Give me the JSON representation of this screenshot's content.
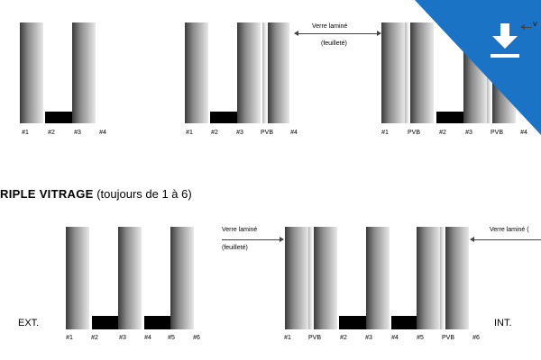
{
  "top_row": {
    "diagram_a": {
      "labels": [
        "#1",
        "#2",
        "#3",
        "#4"
      ]
    },
    "diagram_b": {
      "labels": [
        "#1",
        "#2",
        "#3",
        "PVB",
        "#4"
      ],
      "annotation_line1": "Verre laminé",
      "annotation_line2": "(feuilleté)"
    },
    "diagram_c": {
      "labels": [
        "#1",
        "PVB",
        "#2",
        "#3",
        "PVB",
        "#4"
      ],
      "annotation_clipped": "V"
    }
  },
  "section_title": {
    "bold": "RIPLE VITRAGE",
    "normal": " (toujours de 1 à 6)"
  },
  "bottom_row": {
    "ext_label": "EXT.",
    "int_label": "INT.",
    "diagram_d": {
      "labels": [
        "#1",
        "#2",
        "#3",
        "#4",
        "#5",
        "#6"
      ],
      "annotation_line1": "Verre laminé",
      "annotation_line2": "(feuilleté)"
    },
    "diagram_e": {
      "labels": [
        "#1",
        "PVB",
        "#2",
        "#3",
        "#4",
        "#5",
        "PVB",
        "#6"
      ],
      "annotation_right": "Verre laminé ("
    }
  },
  "colors": {
    "download_badge": "#1a73c4",
    "spacer": "#000000"
  },
  "icons": [
    "download-icon",
    "arrow-left-icon",
    "arrow-right-icon"
  ]
}
